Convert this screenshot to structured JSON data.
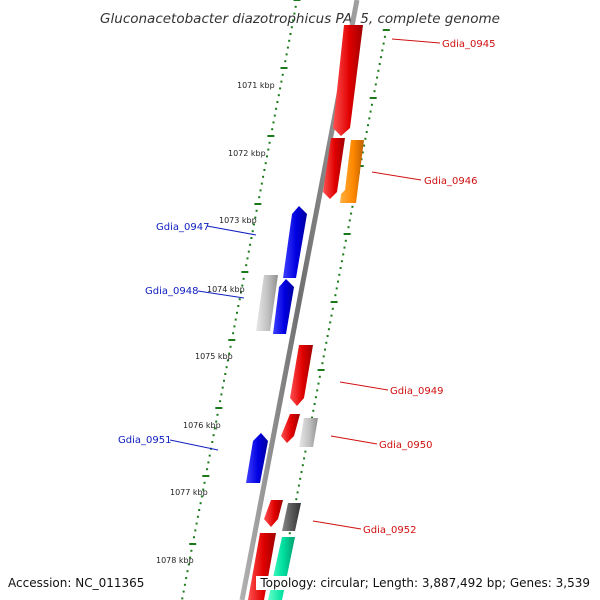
{
  "title": "Gluconacetobacter diazotrophicus PAl 5, complete genome",
  "footer": {
    "accession": "Accession: NC_011365",
    "topology": "Topology: circular; Length: 3,887,492 bp; Genes: 3,539"
  },
  "kbp_ticks": [
    "1071 kbp",
    "1072 kbp",
    "1073 kbp",
    "1074 kbp",
    "1075 kbp",
    "1076 kbp",
    "1077 kbp",
    "1078 kbp"
  ],
  "gene_labels": {
    "right": [
      "Gdia_0945",
      "Gdia_0946",
      "Gdia_0949",
      "Gdia_0950",
      "Gdia_0952"
    ],
    "left": [
      "Gdia_0947",
      "Gdia_0948",
      "Gdia_0951"
    ]
  },
  "colors": {
    "forward_gene": "#e00000",
    "reverse_gene": "#0000e0",
    "orange_gene": "#ff8800",
    "light_gray_gene": "#c0c0c0",
    "dark_gray_gene": "#555555",
    "teal_gene": "#00e0a0",
    "backbone": "#808080",
    "tick": "#1a7a1a",
    "label_left": "#1020c0",
    "label_right": "#d01010"
  }
}
